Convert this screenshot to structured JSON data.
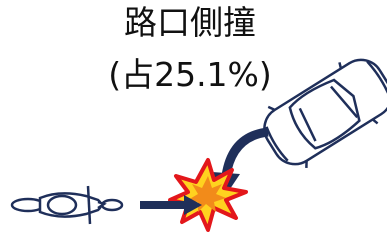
{
  "title": "路口側撞",
  "subtitle": "(占25.1%)"
}
